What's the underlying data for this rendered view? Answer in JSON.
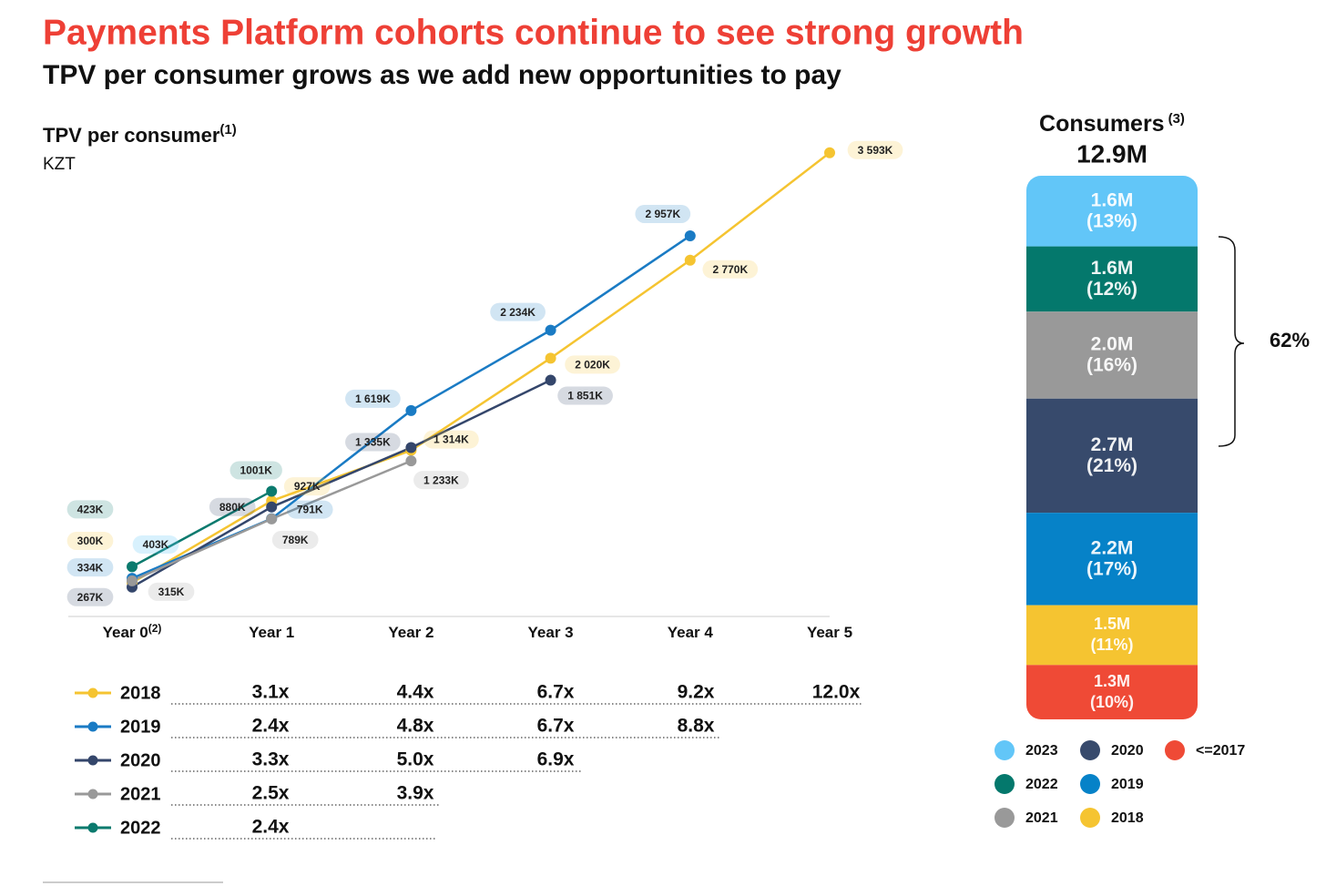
{
  "title": "Payments Platform cohorts continue to see strong growth",
  "subtitle": "TPV per consumer grows as we add new opportunities to pay",
  "chart_data": [
    {
      "type": "line",
      "title": "TPV per consumer",
      "title_note": "(1)",
      "unit": "KZT",
      "categories": [
        "Year 0",
        "Year 1",
        "Year 2",
        "Year 3",
        "Year 4",
        "Year 5"
      ],
      "first_category_note": "(2)",
      "ylim": [
        0,
        3700
      ],
      "series": [
        {
          "name": "2018",
          "color": "#f5c431",
          "values": [
            300,
            927,
            1314,
            2020,
            2770,
            3593
          ],
          "value_labels": [
            "300K",
            "927K",
            "1 314K",
            "2 020K",
            "2 770K",
            "3 593K"
          ],
          "multiples": [
            "3.1x",
            "4.4x",
            "6.7x",
            "9.2x",
            "12.0x"
          ]
        },
        {
          "name": "2019",
          "color": "#1a7bc4",
          "values": [
            334,
            791,
            1619,
            2234,
            2957,
            null
          ],
          "value_labels": [
            "334K",
            "791K",
            "1 619K",
            "2 234K",
            "2 957K",
            null
          ],
          "multiples": [
            "2.4x",
            "4.8x",
            "6.7x",
            "8.8x"
          ]
        },
        {
          "name": "2020",
          "color": "#34466b",
          "values": [
            267,
            880,
            1335,
            1851,
            null,
            null
          ],
          "value_labels": [
            "267K",
            "880K",
            "1 335K",
            "1 851K",
            null,
            null
          ],
          "multiples": [
            "3.3x",
            "5.0x",
            "6.9x"
          ]
        },
        {
          "name": "2021",
          "color": "#999999",
          "values": [
            315,
            789,
            1233,
            null,
            null,
            null
          ],
          "value_labels": [
            "315K",
            "789K",
            "1 233K",
            null,
            null,
            null
          ],
          "multiples": [
            "2.5x",
            "3.9x"
          ]
        },
        {
          "name": "2022",
          "color": "#0b7a6e",
          "values": [
            423,
            1001,
            null,
            null,
            null,
            null
          ],
          "value_labels": [
            "423K",
            "1001K",
            null,
            null,
            null,
            null
          ],
          "multiples": [
            "2.4x"
          ]
        }
      ],
      "annotations": [
        "403K"
      ]
    },
    {
      "type": "stacked_bar",
      "title": "Consumers",
      "title_note": "(3)",
      "total": "12.9M",
      "bracket_label": "62%",
      "series": [
        {
          "name": "2023",
          "color": "#62c6f8",
          "values": [
            13
          ],
          "value_labels": [
            "(13%)"
          ],
          "amounts": [
            1.6
          ],
          "amount_labels": [
            "1.6M"
          ]
        },
        {
          "name": "2022",
          "color": "#04786c",
          "values": [
            12
          ],
          "value_labels": [
            "(12%)"
          ],
          "amounts": [
            1.6
          ],
          "amount_labels": [
            "1.6M"
          ]
        },
        {
          "name": "2021",
          "color": "#999999",
          "values": [
            16
          ],
          "value_labels": [
            "(16%)"
          ],
          "amounts": [
            2.0
          ],
          "amount_labels": [
            "2.0M"
          ]
        },
        {
          "name": "2020",
          "color": "#374a6c",
          "values": [
            21
          ],
          "value_labels": [
            "(21%)"
          ],
          "amounts": [
            2.7
          ],
          "amount_labels": [
            "2.7M"
          ]
        },
        {
          "name": "2019",
          "color": "#0682c8",
          "values": [
            17
          ],
          "value_labels": [
            "(17%)"
          ],
          "amounts": [
            2.2
          ],
          "amount_labels": [
            "2.2M"
          ]
        },
        {
          "name": "2018",
          "color": "#f5c431",
          "values": [
            11
          ],
          "value_labels": [
            "(11%)"
          ],
          "amounts": [
            1.5
          ],
          "amount_labels": [
            "1.5M"
          ]
        },
        {
          "name": "<=2017",
          "color": "#ef4a36",
          "values": [
            10
          ],
          "value_labels": [
            "(10%)"
          ],
          "amounts": [
            1.3
          ],
          "amount_labels": [
            "1.3M"
          ]
        }
      ]
    }
  ]
}
